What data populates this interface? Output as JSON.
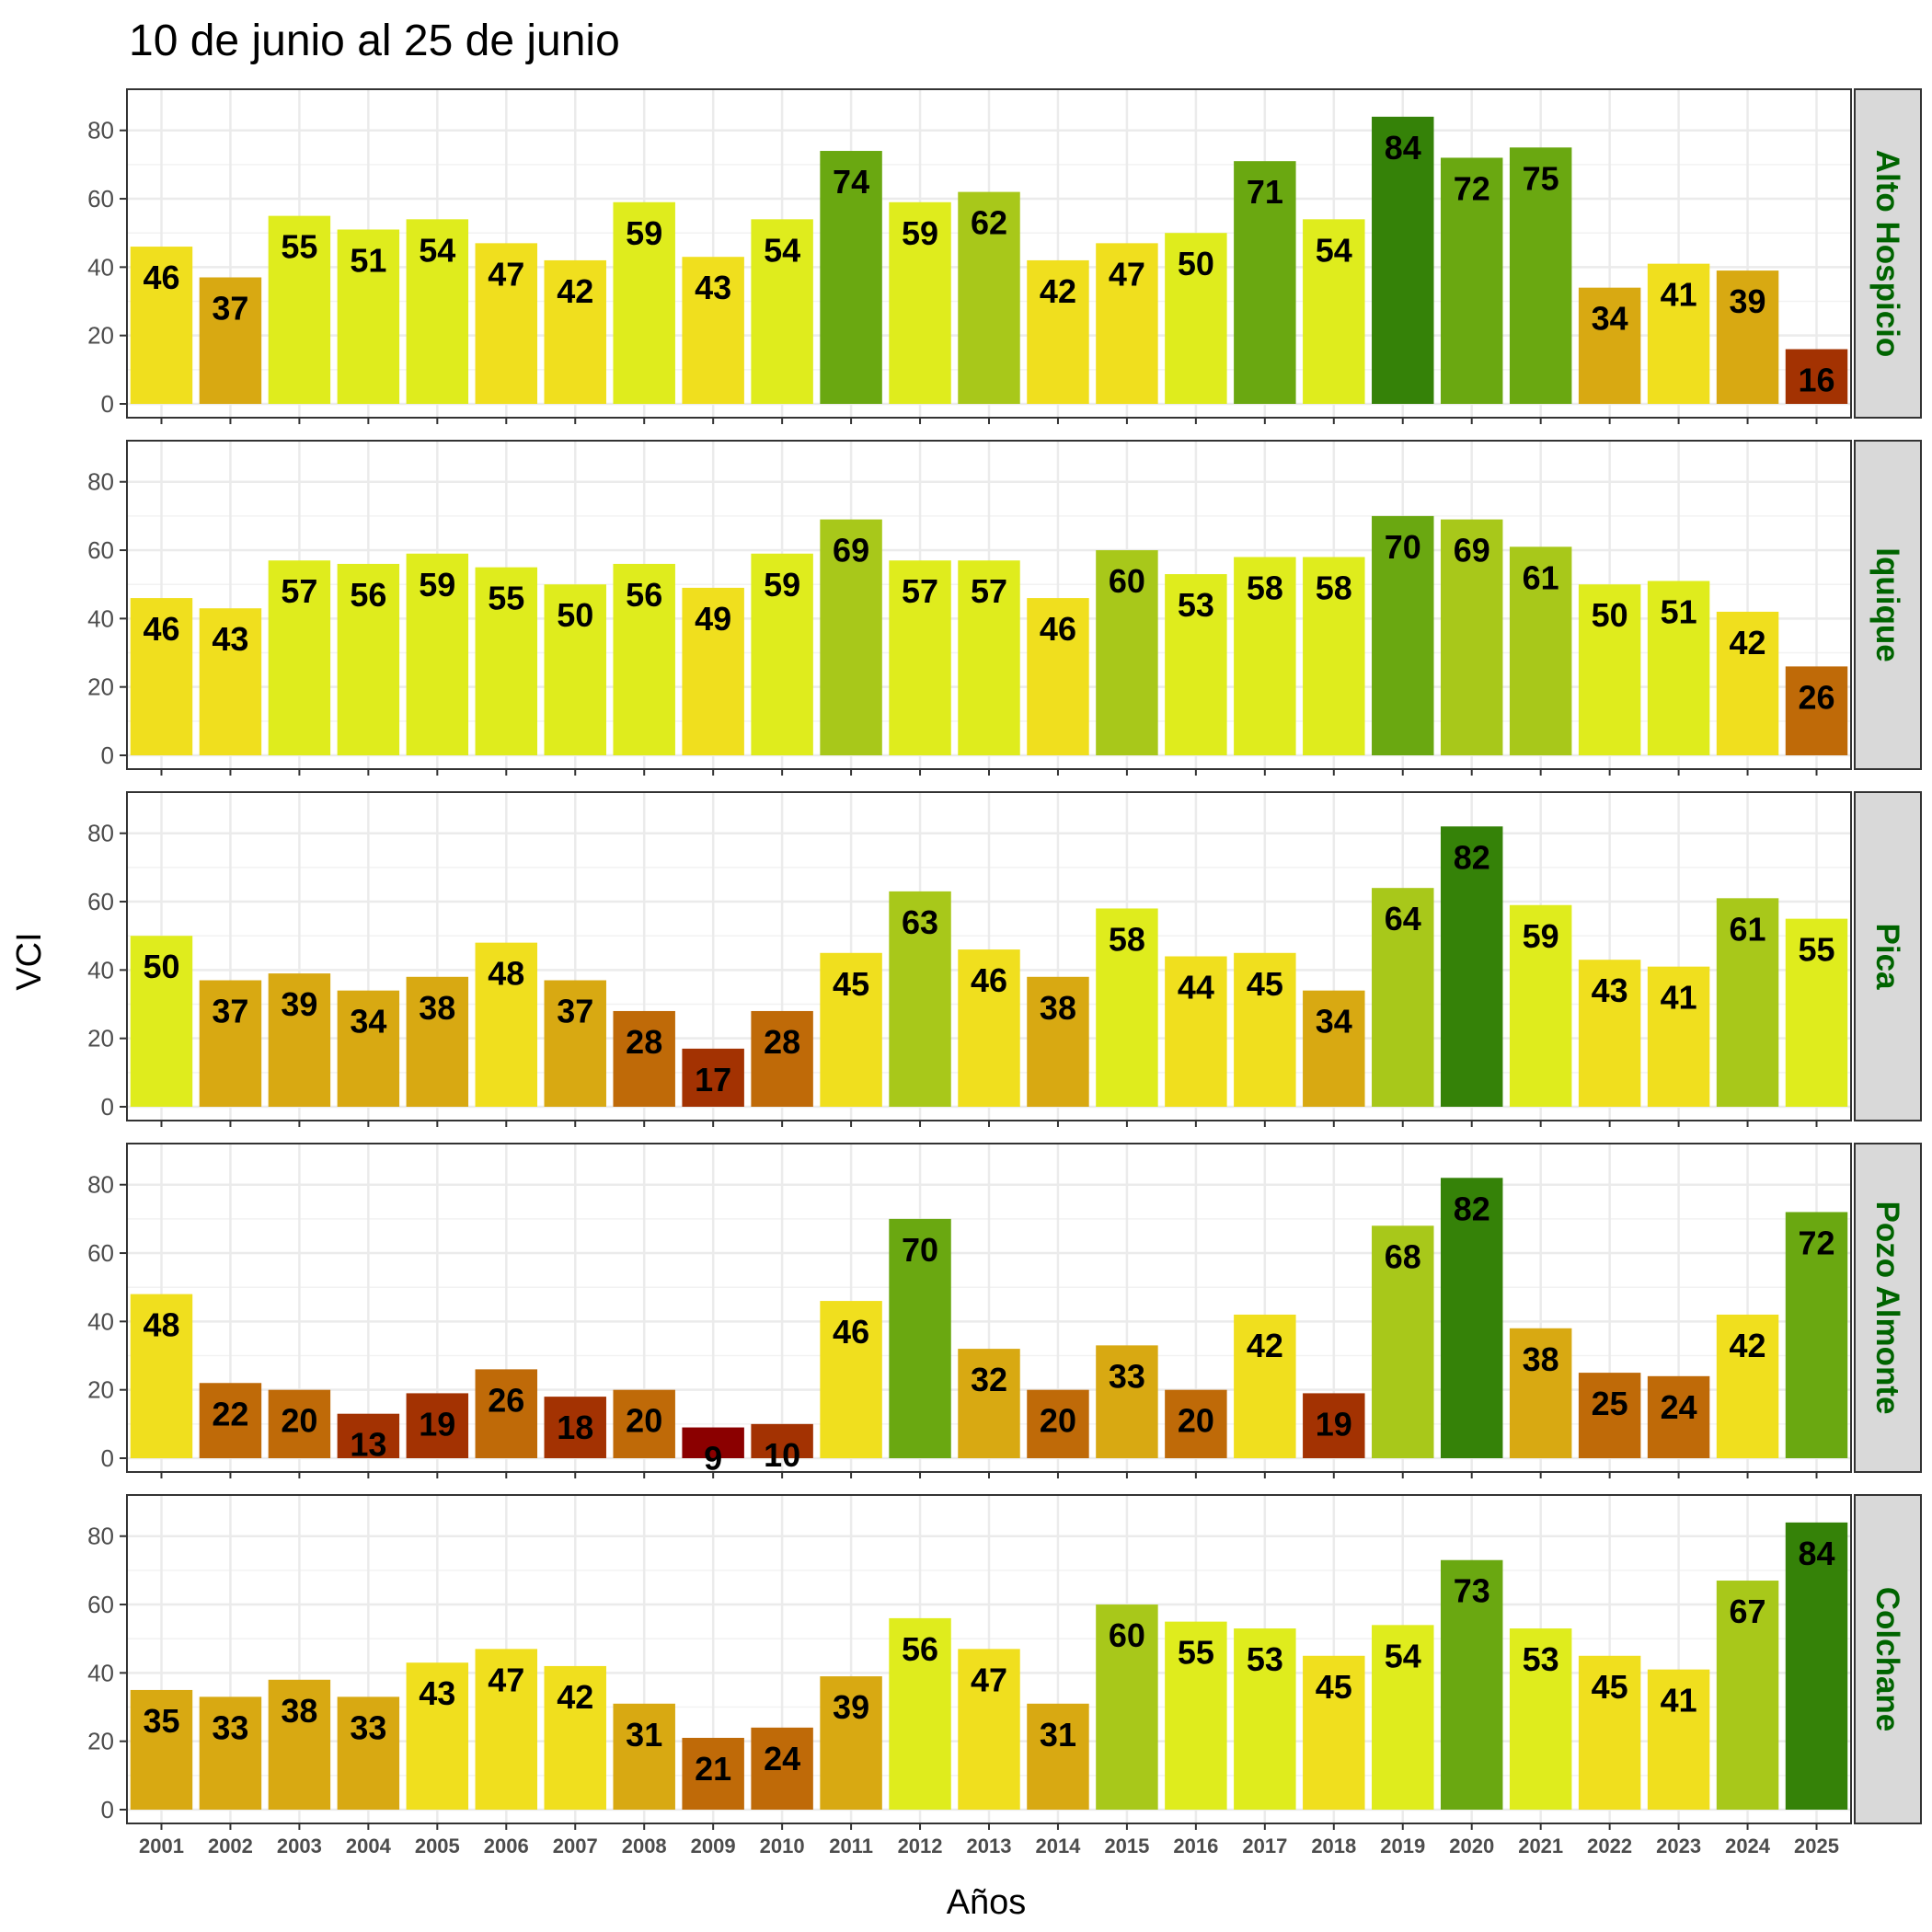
{
  "chart_data": {
    "type": "bar",
    "title": "10 de junio al 25 de junio",
    "xlabel": "Años",
    "ylabel": "VCI",
    "ylim": [
      0,
      88
    ],
    "yticks": [
      0,
      20,
      40,
      60,
      80
    ],
    "grid": true,
    "categories": [
      "2001",
      "2002",
      "2003",
      "2004",
      "2005",
      "2006",
      "2007",
      "2008",
      "2009",
      "2010",
      "2011",
      "2012",
      "2013",
      "2014",
      "2015",
      "2016",
      "2017",
      "2018",
      "2019",
      "2020",
      "2021",
      "2022",
      "2023",
      "2024",
      "2025"
    ],
    "colors": {
      "c0": "#8b0000",
      "c1": "#a33202",
      "c2": "#bf6a08",
      "c3": "#d8a912",
      "c4": "#f0df1e",
      "c5": "#dfec1d",
      "c6": "#a8c81a",
      "c7": "#6aa811",
      "c8": "#358208",
      "strip_text": "#006400",
      "strip_bg": "#d9d9d9"
    },
    "panels": [
      {
        "name": "Alto Hospicio",
        "values": [
          46,
          37,
          55,
          51,
          54,
          47,
          42,
          59,
          43,
          54,
          74,
          59,
          62,
          42,
          47,
          50,
          71,
          54,
          84,
          72,
          75,
          34,
          41,
          39,
          16
        ]
      },
      {
        "name": "Iquique",
        "values": [
          46,
          43,
          57,
          56,
          59,
          55,
          50,
          56,
          49,
          59,
          69,
          57,
          57,
          46,
          60,
          53,
          58,
          58,
          70,
          69,
          61,
          50,
          51,
          42,
          26
        ]
      },
      {
        "name": "Pica",
        "values": [
          50,
          37,
          39,
          34,
          38,
          48,
          37,
          28,
          17,
          28,
          45,
          63,
          46,
          38,
          58,
          44,
          45,
          34,
          64,
          82,
          59,
          43,
          41,
          61,
          55
        ]
      },
      {
        "name": "Pozo Almonte",
        "values": [
          48,
          22,
          20,
          13,
          19,
          26,
          18,
          20,
          9,
          10,
          46,
          70,
          32,
          20,
          33,
          20,
          42,
          19,
          68,
          82,
          38,
          25,
          24,
          42,
          72
        ]
      },
      {
        "name": "Colchane",
        "values": [
          35,
          33,
          38,
          33,
          43,
          47,
          42,
          31,
          21,
          24,
          39,
          56,
          47,
          31,
          60,
          55,
          53,
          45,
          54,
          73,
          53,
          45,
          41,
          67,
          84
        ]
      }
    ]
  }
}
